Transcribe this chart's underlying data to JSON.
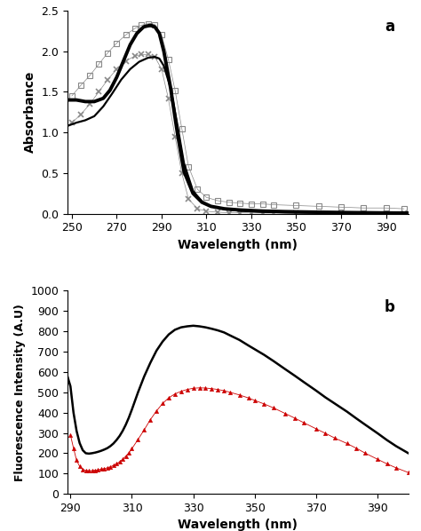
{
  "panel_a": {
    "label": "a",
    "xlabel": "Wavelength (nm)",
    "ylabel": "Absorbance",
    "xlim": [
      248,
      400
    ],
    "ylim": [
      0,
      2.5
    ],
    "xticks": [
      250,
      270,
      290,
      310,
      330,
      350,
      370,
      390
    ],
    "yticks": [
      0,
      0.5,
      1.0,
      1.5,
      2.0,
      2.5
    ],
    "solid_line1": {
      "color": "#000000",
      "lw": 1.6,
      "x": [
        248,
        252,
        256,
        260,
        264,
        268,
        272,
        276,
        280,
        284,
        287,
        289,
        291,
        294,
        297,
        300,
        304,
        308,
        312,
        318,
        325,
        335,
        345,
        360,
        375,
        390,
        400
      ],
      "y": [
        1.08,
        1.12,
        1.15,
        1.2,
        1.32,
        1.48,
        1.65,
        1.78,
        1.87,
        1.92,
        1.93,
        1.91,
        1.82,
        1.55,
        1.1,
        0.62,
        0.28,
        0.15,
        0.09,
        0.055,
        0.035,
        0.022,
        0.016,
        0.01,
        0.007,
        0.005,
        0.004
      ]
    },
    "solid_line2": {
      "color": "#000000",
      "lw": 2.8,
      "x": [
        248,
        252,
        256,
        260,
        264,
        267,
        270,
        273,
        276,
        279,
        282,
        285,
        287,
        289,
        291,
        294,
        297,
        300,
        304,
        308,
        312,
        318,
        325,
        335,
        345,
        360,
        375,
        390,
        400
      ],
      "y": [
        1.4,
        1.4,
        1.38,
        1.38,
        1.42,
        1.52,
        1.68,
        1.88,
        2.08,
        2.22,
        2.3,
        2.32,
        2.3,
        2.22,
        2.0,
        1.55,
        1.0,
        0.52,
        0.25,
        0.14,
        0.09,
        0.06,
        0.045,
        0.032,
        0.025,
        0.018,
        0.013,
        0.009,
        0.007
      ]
    },
    "square_line": {
      "color": "#888888",
      "marker": "s",
      "x": [
        250,
        254,
        258,
        262,
        266,
        270,
        274,
        278,
        281,
        284,
        287,
        290,
        293,
        296,
        299,
        302,
        306,
        310,
        315,
        320,
        325,
        330,
        335,
        340,
        350,
        360,
        370,
        380,
        390,
        398
      ],
      "y": [
        1.45,
        1.58,
        1.7,
        1.84,
        1.98,
        2.1,
        2.2,
        2.28,
        2.32,
        2.34,
        2.33,
        2.2,
        1.9,
        1.52,
        1.05,
        0.58,
        0.3,
        0.2,
        0.16,
        0.14,
        0.13,
        0.12,
        0.12,
        0.11,
        0.1,
        0.09,
        0.08,
        0.07,
        0.07,
        0.06
      ]
    },
    "cross_line": {
      "color": "#888888",
      "marker": "x",
      "x": [
        250,
        254,
        258,
        262,
        266,
        270,
        274,
        278,
        281,
        284,
        287,
        290,
        293,
        296,
        299,
        302,
        306,
        310,
        315,
        320,
        325,
        330,
        335,
        340,
        350,
        360,
        370,
        380,
        390,
        398
      ],
      "y": [
        1.12,
        1.22,
        1.35,
        1.5,
        1.65,
        1.78,
        1.88,
        1.94,
        1.96,
        1.96,
        1.93,
        1.78,
        1.42,
        0.95,
        0.5,
        0.18,
        0.06,
        0.03,
        0.018,
        0.012,
        0.01,
        0.009,
        0.008,
        0.007,
        0.006,
        0.005,
        0.004,
        0.003,
        0.003,
        0.002
      ]
    }
  },
  "panel_b": {
    "label": "b",
    "xlabel": "Wavelength (nm)",
    "ylabel": "Fluorescence Intensity (A.U)",
    "xlim": [
      289,
      400
    ],
    "ylim": [
      0,
      1000
    ],
    "xticks": [
      290,
      310,
      330,
      350,
      370,
      390
    ],
    "yticks": [
      0,
      100,
      200,
      300,
      400,
      500,
      600,
      700,
      800,
      900,
      1000
    ],
    "black_line": {
      "color": "#000000",
      "lw": 1.8,
      "x": [
        289,
        290,
        291,
        292,
        293,
        294,
        295,
        296,
        297,
        298,
        299,
        300,
        301,
        302,
        303,
        304,
        305,
        306,
        307,
        308,
        309,
        310,
        312,
        314,
        316,
        318,
        320,
        322,
        324,
        326,
        328,
        330,
        332,
        334,
        336,
        338,
        340,
        342,
        345,
        348,
        350,
        353,
        356,
        360,
        363,
        366,
        370,
        373,
        376,
        380,
        383,
        386,
        390,
        393,
        396,
        400
      ],
      "y": [
        580,
        530,
        400,
        310,
        250,
        215,
        200,
        198,
        200,
        203,
        207,
        212,
        218,
        225,
        235,
        248,
        265,
        285,
        310,
        340,
        375,
        415,
        500,
        578,
        645,
        705,
        750,
        785,
        808,
        820,
        825,
        828,
        825,
        820,
        813,
        805,
        795,
        780,
        758,
        730,
        712,
        685,
        655,
        613,
        582,
        550,
        508,
        475,
        445,
        405,
        372,
        340,
        298,
        265,
        235,
        200
      ]
    },
    "red_triangle_line": {
      "color": "#cc0000",
      "marker": "^",
      "x": [
        290,
        291,
        292,
        293,
        294,
        295,
        296,
        297,
        298,
        299,
        300,
        301,
        302,
        303,
        304,
        305,
        306,
        307,
        308,
        309,
        310,
        312,
        314,
        316,
        318,
        320,
        322,
        324,
        326,
        328,
        330,
        332,
        334,
        336,
        338,
        340,
        342,
        345,
        348,
        350,
        353,
        356,
        360,
        363,
        366,
        370,
        373,
        376,
        380,
        383,
        386,
        390,
        393,
        396,
        400
      ],
      "y": [
        290,
        225,
        165,
        135,
        120,
        115,
        113,
        114,
        116,
        118,
        121,
        124,
        128,
        133,
        140,
        148,
        158,
        170,
        185,
        202,
        222,
        268,
        315,
        365,
        408,
        445,
        473,
        492,
        505,
        514,
        520,
        522,
        521,
        518,
        514,
        508,
        500,
        487,
        472,
        460,
        443,
        424,
        395,
        373,
        350,
        320,
        298,
        275,
        248,
        225,
        200,
        170,
        148,
        128,
        105
      ]
    }
  }
}
